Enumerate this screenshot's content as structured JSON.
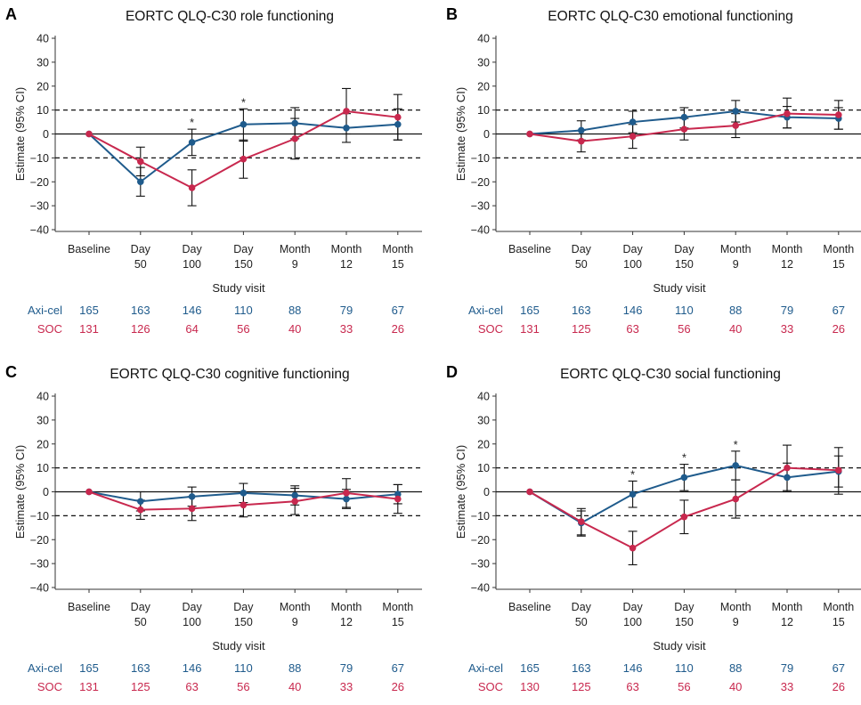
{
  "colors": {
    "axicel": "#1f5b8c",
    "soc": "#c8284e",
    "reference": "#111111"
  },
  "x_categories": [
    [
      "Baseline"
    ],
    [
      "Day",
      "50"
    ],
    [
      "Day",
      "100"
    ],
    [
      "Day",
      "150"
    ],
    [
      "Month",
      "9"
    ],
    [
      "Month",
      "12"
    ],
    [
      "Month",
      "15"
    ]
  ],
  "xlabel": "Study visit",
  "ylabel": "Estimate (95% CI)",
  "ylim": [
    -40,
    40
  ],
  "yticks": [
    40,
    30,
    20,
    10,
    0,
    -10,
    -20,
    -30,
    -40
  ],
  "reference_lines": {
    "solid": 0,
    "dashed": [
      10,
      -10
    ]
  },
  "chart_data": [
    {
      "type": "line",
      "panel": "A",
      "title": "EORTC QLQ-C30 role functioning",
      "series": [
        {
          "name": "Axi-cel",
          "values": [
            0,
            -20,
            -3.5,
            4,
            4.5,
            2.5,
            4
          ],
          "ci_low": [
            null,
            -26,
            -9,
            -3,
            -2,
            -3.5,
            -2.5
          ],
          "ci_high": [
            null,
            -14,
            2,
            10.5,
            11,
            8.5,
            10.5
          ],
          "n": [
            165,
            163,
            146,
            110,
            88,
            79,
            67
          ]
        },
        {
          "name": "SOC",
          "values": [
            0,
            -11.5,
            -22.5,
            -10.5,
            -2,
            9.5,
            7
          ],
          "ci_low": [
            null,
            -17.5,
            -30,
            -18.5,
            -10.5,
            0,
            -2.5
          ],
          "ci_high": [
            null,
            -5.5,
            -15,
            -2.5,
            6.5,
            19,
            16.5
          ],
          "n": [
            131,
            126,
            64,
            56,
            40,
            33,
            26
          ]
        }
      ],
      "significance_markers": [
        2,
        3
      ]
    },
    {
      "type": "line",
      "panel": "B",
      "title": "EORTC QLQ-C30 emotional functioning",
      "series": [
        {
          "name": "Axi-cel",
          "values": [
            0,
            1.5,
            5,
            7,
            9.5,
            7,
            6.5
          ],
          "ci_low": [
            null,
            -2.5,
            0.5,
            2.5,
            5,
            2.5,
            2
          ],
          "ci_high": [
            null,
            5.5,
            9.5,
            11,
            14,
            11.5,
            11
          ]
        },
        {
          "name": "SOC",
          "values": [
            0,
            -3,
            -1,
            2,
            3.5,
            8.5,
            8
          ],
          "ci_low": [
            null,
            -7.5,
            -6,
            -2.5,
            -1.5,
            2.5,
            2
          ],
          "ci_high": [
            null,
            1.5,
            4,
            6.5,
            8.5,
            15,
            14
          ]
        }
      ],
      "n_axicel": [
        165,
        163,
        146,
        110,
        88,
        79,
        67
      ],
      "n_soc": [
        131,
        125,
        63,
        56,
        40,
        33,
        26
      ],
      "significance_markers": []
    },
    {
      "type": "line",
      "panel": "C",
      "title": "EORTC QLQ-C30 cognitive functioning",
      "series": [
        {
          "name": "Axi-cel",
          "values": [
            0,
            -4,
            -2,
            -0.5,
            -1.5,
            -3,
            -1
          ],
          "ci_low": [
            null,
            -8,
            -6,
            -4.5,
            -5.5,
            -7,
            -5
          ],
          "ci_high": [
            null,
            0,
            2,
            3.5,
            2.5,
            1,
            3
          ]
        },
        {
          "name": "SOC",
          "values": [
            0,
            -7.5,
            -7,
            -5.5,
            -4,
            -0.5,
            -3
          ],
          "ci_low": [
            null,
            -11.5,
            -12,
            -10.5,
            -9.5,
            -6.5,
            -9
          ],
          "ci_high": [
            null,
            -3.5,
            -2,
            -0.5,
            1.5,
            5.5,
            3
          ]
        }
      ],
      "n_axicel": [
        165,
        163,
        146,
        110,
        88,
        79,
        67
      ],
      "n_soc": [
        131,
        125,
        63,
        56,
        40,
        33,
        26
      ],
      "significance_markers": []
    },
    {
      "type": "line",
      "panel": "D",
      "title": "EORTC QLQ-C30 social functioning",
      "series": [
        {
          "name": "Axi-cel",
          "values": [
            0,
            -13,
            -1,
            6,
            11,
            6,
            8.5
          ],
          "ci_low": [
            null,
            -18,
            -6.5,
            0.5,
            5,
            0,
            2
          ],
          "ci_high": [
            null,
            -8,
            4.5,
            11.5,
            17,
            12,
            15
          ]
        },
        {
          "name": "SOC",
          "values": [
            0,
            -12.5,
            -23.5,
            -10.5,
            -3,
            10,
            9
          ],
          "ci_low": [
            null,
            -18.5,
            -30.5,
            -17.5,
            -11,
            0.5,
            -1
          ],
          "ci_high": [
            null,
            -7,
            -16.5,
            -3.5,
            5,
            19.5,
            18.5
          ]
        }
      ],
      "n_axicel": [
        165,
        163,
        146,
        110,
        88,
        79,
        67
      ],
      "n_soc": [
        130,
        125,
        63,
        56,
        40,
        33,
        26
      ],
      "significance_markers": [
        2,
        3,
        4
      ]
    }
  ]
}
